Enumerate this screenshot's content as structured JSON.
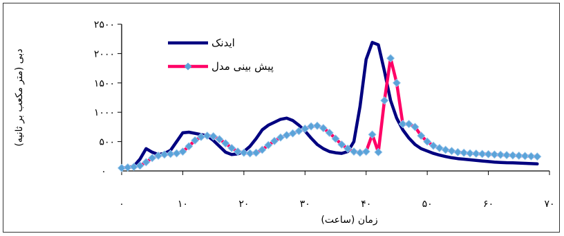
{
  "chart_data": {
    "type": "line",
    "xlabel": "زمان (ساعت)",
    "ylabel": "دبی (متر مکعب بر ثانیه)",
    "xlim": [
      0,
      70
    ],
    "ylim": [
      0,
      2500
    ],
    "x_ticks": [
      0,
      10,
      20,
      30,
      40,
      50,
      60,
      70
    ],
    "x_tick_labels": [
      "۰",
      "۱۰",
      "۲۰",
      "۳۰",
      "۴۰",
      "۵۰",
      "۶۰",
      "۷۰"
    ],
    "y_ticks": [
      500,
      1000,
      1500,
      2000,
      2500
    ],
    "y_tick_labels": [
      "۵۰۰",
      "۱۰۰۰",
      "۱۵۰۰",
      "۲۰۰۰",
      "۲۵۰۰"
    ],
    "y_zero_label": "۰",
    "legend_position": "top-left",
    "series": [
      {
        "name": "ایدنک",
        "color": "#000080",
        "marker": "none",
        "x": [
          0,
          1,
          2,
          3,
          4,
          5,
          6,
          7,
          8,
          9,
          10,
          11,
          12,
          13,
          14,
          15,
          16,
          17,
          18,
          19,
          20,
          21,
          22,
          23,
          24,
          25,
          26,
          27,
          28,
          29,
          30,
          31,
          32,
          33,
          34,
          35,
          36,
          37,
          38,
          39,
          40,
          41,
          42,
          43,
          44,
          45,
          46,
          47,
          48,
          49,
          50,
          51,
          52,
          53,
          54,
          55,
          56,
          57,
          58,
          59,
          60,
          61,
          62,
          63,
          64,
          65,
          66,
          67,
          68
        ],
        "y": [
          50,
          60,
          80,
          200,
          380,
          320,
          280,
          300,
          350,
          500,
          650,
          660,
          640,
          620,
          600,
          520,
          420,
          320,
          280,
          290,
          330,
          420,
          550,
          700,
          780,
          830,
          880,
          900,
          860,
          780,
          680,
          560,
          450,
          380,
          330,
          310,
          300,
          330,
          500,
          1100,
          1900,
          2190,
          2150,
          1700,
          1200,
          900,
          700,
          560,
          450,
          380,
          340,
          300,
          270,
          245,
          225,
          210,
          200,
          190,
          180,
          170,
          160,
          150,
          145,
          140,
          138,
          135,
          130,
          125,
          120
        ]
      },
      {
        "name": "پیش بینی مدل",
        "color": "#FF0066",
        "marker": "diamond",
        "marker_color": "#5BA3D9",
        "x": [
          0,
          1,
          2,
          3,
          4,
          5,
          6,
          7,
          8,
          9,
          10,
          11,
          12,
          13,
          14,
          15,
          16,
          17,
          18,
          19,
          20,
          21,
          22,
          23,
          24,
          25,
          26,
          27,
          28,
          29,
          30,
          31,
          32,
          33,
          34,
          35,
          36,
          37,
          38,
          39,
          40,
          41,
          42,
          43,
          44,
          45,
          46,
          47,
          48,
          49,
          50,
          51,
          52,
          53,
          54,
          55,
          56,
          57,
          58,
          59,
          60,
          61,
          62,
          63,
          64,
          65,
          66,
          67,
          68
        ],
        "y": [
          50,
          60,
          70,
          90,
          150,
          220,
          260,
          280,
          290,
          300,
          330,
          420,
          520,
          580,
          600,
          590,
          540,
          470,
          390,
          330,
          310,
          300,
          310,
          360,
          440,
          510,
          570,
          610,
          640,
          680,
          720,
          760,
          770,
          730,
          650,
          550,
          450,
          380,
          330,
          310,
          330,
          620,
          320,
          1200,
          1920,
          1500,
          800,
          800,
          750,
          600,
          500,
          430,
          390,
          360,
          340,
          320,
          310,
          300,
          295,
          290,
          285,
          280,
          275,
          270,
          265,
          260,
          255,
          250,
          245
        ]
      }
    ]
  }
}
